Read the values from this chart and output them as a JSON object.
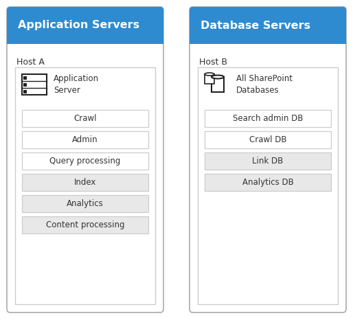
{
  "bg_color": "#ffffff",
  "header_color": "#2e8bd0",
  "header_text_color": "#ffffff",
  "border_color": "#aaaaaa",
  "inner_border_color": "#cccccc",
  "host_label_color": "#333333",
  "box_text_color": "#333333",
  "left_panel": {
    "header": "Application Servers",
    "host_label": "Host A",
    "icon_label": "Application\nServer",
    "white_boxes": [
      "Crawl",
      "Admin",
      "Query processing"
    ],
    "gray_boxes": [
      "Index",
      "Analytics",
      "Content processing"
    ]
  },
  "right_panel": {
    "header": "Database Servers",
    "host_label": "Host B",
    "icon_label": "All SharePoint\nDatabases",
    "white_boxes": [
      "Search admin DB",
      "Crawl DB"
    ],
    "gray_boxes": [
      "Link DB",
      "Analytics DB"
    ]
  }
}
